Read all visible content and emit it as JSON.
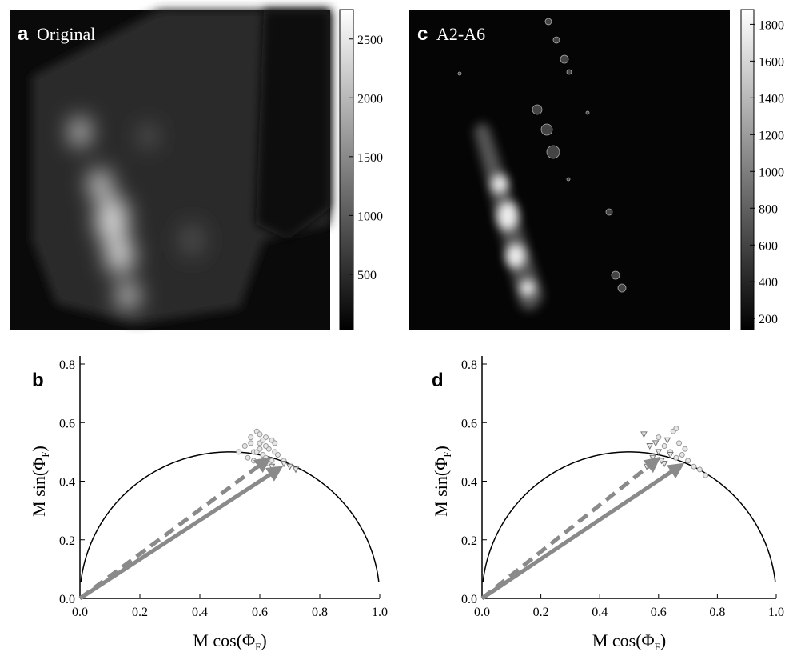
{
  "chart_data": [
    {
      "type": "heatmap",
      "panel_label": "a",
      "title": "Original",
      "colorbar_lim": [
        30,
        2750
      ],
      "colorbar_ticks": [
        500,
        1000,
        1500,
        2000,
        2500
      ]
    },
    {
      "type": "heatmap",
      "panel_label": "c",
      "title": "A2-A6",
      "colorbar_lim": [
        140,
        1880
      ],
      "colorbar_ticks": [
        200,
        400,
        600,
        800,
        1000,
        1200,
        1400,
        1600,
        1800
      ]
    },
    {
      "type": "scatter",
      "panel_label": "b",
      "x_label": "M cos(Φ",
      "x_label_sub": "F",
      "x_label_end": ")",
      "y_label": "M sin(Φ",
      "y_label_sub": "F",
      "y_label_end": ")",
      "xlim": [
        0,
        1
      ],
      "ylim": [
        0,
        0.8
      ],
      "xticks": [
        {
          "value": 0,
          "label": "0.0"
        },
        0.2,
        0.4,
        0.6,
        0.8,
        {
          "value": 1,
          "label": "1.0"
        }
      ],
      "yticks": [
        {
          "value": 0,
          "label": "0.0"
        },
        0.2,
        0.4,
        0.6,
        0.8
      ],
      "series": [
        {
          "marker": "circle",
          "color": "#999999",
          "x": [
            0.55,
            0.57,
            0.58,
            0.59,
            0.6,
            0.61,
            0.62,
            0.63,
            0.64,
            0.65,
            0.56,
            0.58,
            0.6,
            0.62,
            0.64,
            0.66,
            0.59,
            0.61,
            0.63,
            0.57,
            0.6,
            0.62,
            0.65,
            0.68,
            0.53
          ],
          "values": [
            0.52,
            0.55,
            0.5,
            0.57,
            0.53,
            0.49,
            0.55,
            0.51,
            0.54,
            0.5,
            0.48,
            0.47,
            0.56,
            0.52,
            0.47,
            0.49,
            0.5,
            0.54,
            0.46,
            0.53,
            0.51,
            0.48,
            0.53,
            0.47,
            0.5
          ]
        },
        {
          "marker": "triangle",
          "color": "#777777",
          "x": [
            0.62,
            0.64,
            0.66,
            0.68,
            0.7,
            0.72
          ],
          "values": [
            0.46,
            0.45,
            0.44,
            0.46,
            0.45,
            0.44
          ]
        },
        {
          "marker": "arrow",
          "color": "#8a8a8a",
          "dash": true,
          "x": [
            0,
            0.62
          ],
          "values": [
            0,
            0.47
          ]
        },
        {
          "marker": "arrow",
          "color": "#8a8a8a",
          "dash": false,
          "x": [
            0,
            0.66
          ],
          "values": [
            0,
            0.44
          ]
        }
      ]
    },
    {
      "type": "scatter",
      "panel_label": "d",
      "x_label": "M cos(Φ",
      "x_label_sub": "F",
      "x_label_end": ")",
      "y_label": "M sin(Φ",
      "y_label_sub": "F",
      "y_label_end": ")",
      "xlim": [
        0,
        1
      ],
      "ylim": [
        0,
        0.8
      ],
      "xticks": [
        {
          "value": 0,
          "label": "0.0"
        },
        0.2,
        0.4,
        0.6,
        0.8,
        {
          "value": 1,
          "label": "1.0"
        }
      ],
      "yticks": [
        {
          "value": 0,
          "label": "0.0"
        },
        0.2,
        0.4,
        0.6,
        0.8
      ],
      "series": [
        {
          "marker": "circle",
          "color": "#999999",
          "x": [
            0.6,
            0.62,
            0.64,
            0.65,
            0.66,
            0.67,
            0.68,
            0.7,
            0.72,
            0.74,
            0.76,
            0.66,
            0.69
          ],
          "values": [
            0.55,
            0.52,
            0.5,
            0.57,
            0.58,
            0.53,
            0.49,
            0.47,
            0.45,
            0.44,
            0.42,
            0.48,
            0.51
          ]
        },
        {
          "marker": "triangle",
          "color": "#777777",
          "x": [
            0.55,
            0.57,
            0.58,
            0.6,
            0.62,
            0.63,
            0.64,
            0.61,
            0.59,
            0.56
          ],
          "values": [
            0.56,
            0.52,
            0.48,
            0.5,
            0.46,
            0.54,
            0.49,
            0.47,
            0.53,
            0.45
          ]
        },
        {
          "marker": "arrow",
          "color": "#8a8a8a",
          "dash": true,
          "x": [
            0,
            0.59
          ],
          "values": [
            0,
            0.47
          ]
        },
        {
          "marker": "arrow",
          "color": "#8a8a8a",
          "dash": false,
          "x": [
            0,
            0.67
          ],
          "values": [
            0,
            0.45
          ]
        }
      ]
    }
  ]
}
